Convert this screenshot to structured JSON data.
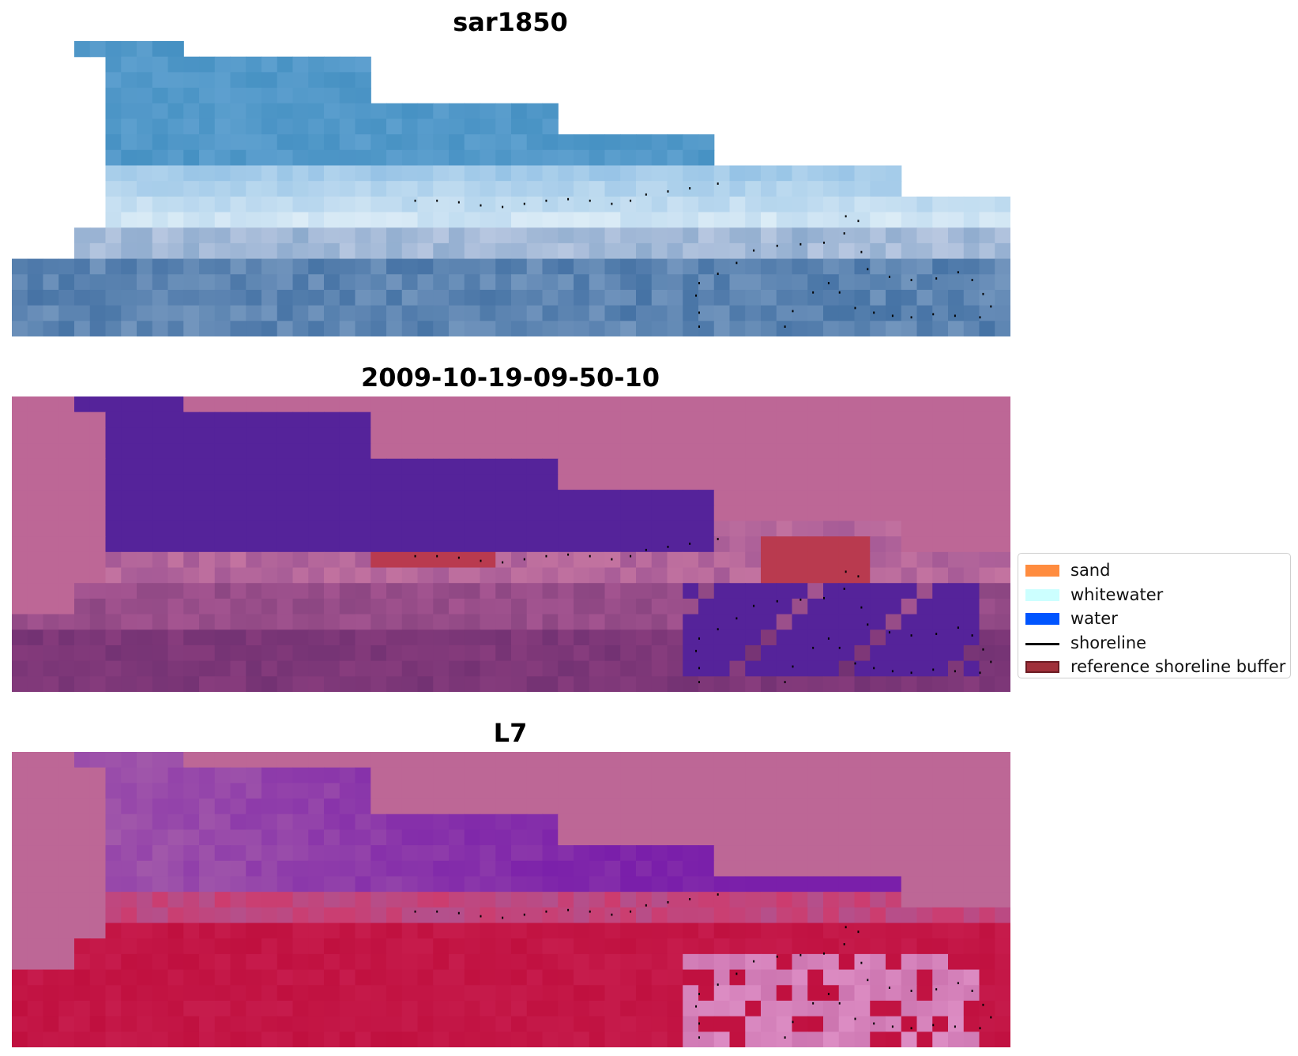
{
  "panels": [
    {
      "title": "sar1850",
      "image": "rgb-composite"
    },
    {
      "title": "2009-10-19-09-50-10",
      "image": "classified-image"
    },
    {
      "title": "L7",
      "image": "mndwi-index"
    }
  ],
  "legend": {
    "items": [
      {
        "label": "sand",
        "color": "#ff8c3f",
        "kind": "patch"
      },
      {
        "label": "whitewater",
        "color": "#ccffff",
        "kind": "patch"
      },
      {
        "label": "water",
        "color": "#0055ff",
        "kind": "patch"
      },
      {
        "label": "shoreline",
        "color": "#000000",
        "kind": "line"
      },
      {
        "label": "reference shoreline buffer",
        "color": "#a0303a",
        "kind": "patch",
        "edge": "#6b1b22"
      }
    ]
  },
  "colors": {
    "nodata": "#bd6796",
    "water_class": "#55239a",
    "buffer_class": "#b93a4f",
    "mndwi_high": "#c0103f",
    "mndwi_low": "#7a1faa"
  }
}
